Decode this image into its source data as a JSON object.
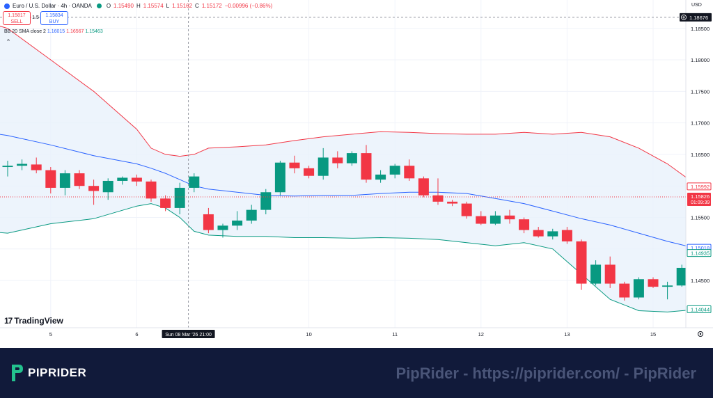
{
  "header": {
    "symbol_title": "Euro / U.S. Dollar · 4h · OANDA",
    "ohlc": {
      "o_label": "O",
      "o_value": "1.15490",
      "h_label": "H",
      "h_value": "1.15574",
      "l_label": "L",
      "l_value": "1.15162",
      "c_label": "C",
      "c_value": "1.15172",
      "change": "−0.00996 (−0.86%)"
    },
    "sell": {
      "price": "1.15817",
      "label": "SELL"
    },
    "buy": {
      "price": "1.15834",
      "label": "BUY"
    },
    "spread": "1.5",
    "bb": {
      "label": "BB 20 SMA close 2",
      "middle": "1.16015",
      "upper": "1.16567",
      "lower": "1.15463"
    },
    "currency": "USD",
    "collapse_icon": "chevron-up-icon"
  },
  "crosshair": {
    "x_label": "Sun 08 Mar '26  21:00",
    "y_label": "1.18676",
    "y_value": 1.18676
  },
  "price_labels": {
    "upper": {
      "text": "1.15992",
      "value": 1.15992,
      "color": "#f23645"
    },
    "current": {
      "text": "1.15826",
      "countdown": "01:09:39",
      "value": 1.15826,
      "color": "#f23645"
    },
    "middle": {
      "text": "1.15018",
      "value": 1.15018,
      "color": "#2962ff"
    },
    "latest_up": {
      "text": "1.14935",
      "value": 1.14935,
      "color": "#089981"
    },
    "lower": {
      "text": "1.14044",
      "value": 1.14044,
      "color": "#089981"
    }
  },
  "footer": {
    "brand": "PIPRIDER",
    "watermark": "PipRider - https://piprider.com/ - PipRider",
    "bg_color": "#111a3a"
  },
  "branding": {
    "tradingview": "TradingView"
  },
  "settings_icon": "gear-icon",
  "colors": {
    "up": "#089981",
    "down": "#f23645",
    "upper_band": "#f23645",
    "middle_band": "#2962ff",
    "lower_band": "#089981",
    "band_fill": "#e8f1fb"
  },
  "chart_data": {
    "type": "candlestick",
    "timeframe": "4h",
    "y_ticks": [
      1.145,
      1.15,
      1.155,
      1.16,
      1.165,
      1.17,
      1.175,
      1.18,
      1.185
    ],
    "y_tick_labels": [
      "1.14500",
      "1.15000",
      "1.15500",
      "1.16000",
      "1.16500",
      "1.17000",
      "1.17500",
      "1.18000",
      "1.18500"
    ],
    "ylim": [
      1.1375,
      1.1895
    ],
    "x_tick_labels": [
      {
        "label": "5",
        "index": 3
      },
      {
        "label": "6",
        "index": 9
      },
      {
        "label": "10",
        "index": 21
      },
      {
        "label": "11",
        "index": 27
      },
      {
        "label": "12",
        "index": 33
      },
      {
        "label": "13",
        "index": 39
      },
      {
        "label": "15",
        "index": 45
      }
    ],
    "candles": [
      {
        "o": 1.163,
        "h": 1.164,
        "l": 1.1615,
        "c": 1.1632
      },
      {
        "o": 1.1632,
        "h": 1.1642,
        "l": 1.1625,
        "c": 1.1635
      },
      {
        "o": 1.1634,
        "h": 1.1645,
        "l": 1.162,
        "c": 1.1625
      },
      {
        "o": 1.1625,
        "h": 1.163,
        "l": 1.1588,
        "c": 1.1597
      },
      {
        "o": 1.1597,
        "h": 1.1625,
        "l": 1.1585,
        "c": 1.162
      },
      {
        "o": 1.162,
        "h": 1.1625,
        "l": 1.1595,
        "c": 1.16
      },
      {
        "o": 1.16,
        "h": 1.161,
        "l": 1.157,
        "c": 1.1592
      },
      {
        "o": 1.159,
        "h": 1.1612,
        "l": 1.1578,
        "c": 1.1608
      },
      {
        "o": 1.1608,
        "h": 1.1615,
        "l": 1.1602,
        "c": 1.1613
      },
      {
        "o": 1.1613,
        "h": 1.1618,
        "l": 1.16,
        "c": 1.1607
      },
      {
        "o": 1.1607,
        "h": 1.161,
        "l": 1.1575,
        "c": 1.158
      },
      {
        "o": 1.158,
        "h": 1.1585,
        "l": 1.156,
        "c": 1.1565
      },
      {
        "o": 1.1565,
        "h": 1.1605,
        "l": 1.1555,
        "c": 1.1597
      },
      {
        "o": 1.1597,
        "h": 1.162,
        "l": 1.159,
        "c": 1.1615
      },
      {
        "o": 1.1555,
        "h": 1.1565,
        "l": 1.1525,
        "c": 1.153
      },
      {
        "o": 1.153,
        "h": 1.154,
        "l": 1.1518,
        "c": 1.1537
      },
      {
        "o": 1.1537,
        "h": 1.156,
        "l": 1.153,
        "c": 1.1545
      },
      {
        "o": 1.1545,
        "h": 1.157,
        "l": 1.154,
        "c": 1.1562
      },
      {
        "o": 1.1562,
        "h": 1.1595,
        "l": 1.1555,
        "c": 1.159
      },
      {
        "o": 1.159,
        "h": 1.164,
        "l": 1.1585,
        "c": 1.1637
      },
      {
        "o": 1.1637,
        "h": 1.1648,
        "l": 1.162,
        "c": 1.1628
      },
      {
        "o": 1.1628,
        "h": 1.1632,
        "l": 1.1612,
        "c": 1.1616
      },
      {
        "o": 1.1616,
        "h": 1.166,
        "l": 1.161,
        "c": 1.1645
      },
      {
        "o": 1.1645,
        "h": 1.1655,
        "l": 1.1628,
        "c": 1.1636
      },
      {
        "o": 1.1636,
        "h": 1.1655,
        "l": 1.1632,
        "c": 1.1652
      },
      {
        "o": 1.1652,
        "h": 1.1665,
        "l": 1.1605,
        "c": 1.161
      },
      {
        "o": 1.161,
        "h": 1.1625,
        "l": 1.1605,
        "c": 1.1618
      },
      {
        "o": 1.1618,
        "h": 1.1635,
        "l": 1.1612,
        "c": 1.1632
      },
      {
        "o": 1.1632,
        "h": 1.1642,
        "l": 1.1608,
        "c": 1.1612
      },
      {
        "o": 1.1612,
        "h": 1.1615,
        "l": 1.1582,
        "c": 1.1585
      },
      {
        "o": 1.1585,
        "h": 1.1612,
        "l": 1.157,
        "c": 1.1575
      },
      {
        "o": 1.1575,
        "h": 1.1578,
        "l": 1.1568,
        "c": 1.1572
      },
      {
        "o": 1.1572,
        "h": 1.1575,
        "l": 1.1548,
        "c": 1.1552
      },
      {
        "o": 1.1552,
        "h": 1.156,
        "l": 1.1538,
        "c": 1.154
      },
      {
        "o": 1.154,
        "h": 1.156,
        "l": 1.1538,
        "c": 1.1553
      },
      {
        "o": 1.1553,
        "h": 1.1562,
        "l": 1.154,
        "c": 1.1547
      },
      {
        "o": 1.1547,
        "h": 1.155,
        "l": 1.1525,
        "c": 1.153
      },
      {
        "o": 1.153,
        "h": 1.1535,
        "l": 1.1518,
        "c": 1.152
      },
      {
        "o": 1.152,
        "h": 1.1532,
        "l": 1.1515,
        "c": 1.1528
      },
      {
        "o": 1.153,
        "h": 1.1535,
        "l": 1.1508,
        "c": 1.1512
      },
      {
        "o": 1.1512,
        "h": 1.1515,
        "l": 1.1435,
        "c": 1.1445
      },
      {
        "o": 1.1445,
        "h": 1.1482,
        "l": 1.1442,
        "c": 1.1475
      },
      {
        "o": 1.1475,
        "h": 1.1488,
        "l": 1.1438,
        "c": 1.1445
      },
      {
        "o": 1.1445,
        "h": 1.1448,
        "l": 1.1418,
        "c": 1.1423
      },
      {
        "o": 1.1423,
        "h": 1.1455,
        "l": 1.142,
        "c": 1.1452
      },
      {
        "o": 1.1452,
        "h": 1.1455,
        "l": 1.1438,
        "c": 1.144
      },
      {
        "o": 1.144,
        "h": 1.1448,
        "l": 1.142,
        "c": 1.1442
      },
      {
        "o": 1.1442,
        "h": 1.1475,
        "l": 1.144,
        "c": 1.147
      },
      {
        "o": 1.147,
        "h": 1.149,
        "l": 1.1468,
        "c": 1.1486
      }
    ],
    "bollinger": {
      "period": 20,
      "stddev": 2,
      "x_index": [
        -3,
        0,
        3,
        6,
        9,
        10,
        11,
        12,
        13,
        14,
        16,
        18,
        20,
        22,
        24,
        26,
        28,
        30,
        32,
        34,
        36,
        38,
        40,
        42,
        44,
        46,
        48
      ],
      "upper": [
        1.187,
        1.185,
        1.18,
        1.175,
        1.169,
        1.166,
        1.165,
        1.1647,
        1.165,
        1.166,
        1.1662,
        1.1665,
        1.1672,
        1.1678,
        1.1682,
        1.1686,
        1.1685,
        1.1683,
        1.1682,
        1.1682,
        1.1685,
        1.1682,
        1.1685,
        1.1678,
        1.166,
        1.1635,
        1.1602
      ],
      "middle": [
        1.169,
        1.168,
        1.1665,
        1.1648,
        1.1635,
        1.1628,
        1.162,
        1.161,
        1.16,
        1.1595,
        1.159,
        1.1585,
        1.1584,
        1.1585,
        1.1585,
        1.1588,
        1.159,
        1.159,
        1.1588,
        1.158,
        1.1572,
        1.156,
        1.1548,
        1.1538,
        1.1525,
        1.1512,
        1.1501
      ],
      "lower": [
        1.153,
        1.1525,
        1.154,
        1.1548,
        1.1568,
        1.1572,
        1.1565,
        1.155,
        1.1528,
        1.1522,
        1.152,
        1.152,
        1.1518,
        1.1518,
        1.1517,
        1.1518,
        1.1517,
        1.1515,
        1.151,
        1.1505,
        1.151,
        1.15,
        1.146,
        1.142,
        1.1402,
        1.14,
        1.1404
      ]
    }
  }
}
